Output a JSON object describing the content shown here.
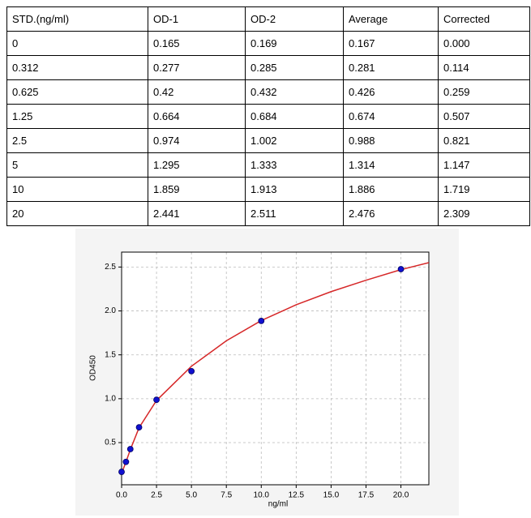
{
  "table": {
    "header": [
      "STD.(ng/ml)",
      "OD-1",
      "OD-2",
      "Average",
      "Corrected"
    ],
    "rows": [
      [
        "0",
        "0.165",
        "0.169",
        "0.167",
        "0.000"
      ],
      [
        "0.312",
        "0.277",
        "0.285",
        "0.281",
        "0.114"
      ],
      [
        "0.625",
        "0.42",
        "0.432",
        "0.426",
        "0.259"
      ],
      [
        "1.25",
        "0.664",
        "0.684",
        "0.674",
        "0.507"
      ],
      [
        "2.5",
        "0.974",
        "1.002",
        "0.988",
        "0.821"
      ],
      [
        "5",
        "1.295",
        "1.333",
        "1.314",
        "1.147"
      ],
      [
        "10",
        "1.859",
        "1.913",
        "1.886",
        "1.719"
      ],
      [
        "20",
        "2.441",
        "2.511",
        "2.476",
        "2.309"
      ]
    ]
  },
  "chart_data": {
    "type": "scatter",
    "xlabel": "ng/ml",
    "ylabel": "OD450",
    "x": [
      0,
      0.312,
      0.625,
      1.25,
      2.5,
      5,
      10,
      20
    ],
    "values": [
      0.167,
      0.281,
      0.426,
      0.674,
      0.988,
      1.314,
      1.886,
      2.476
    ],
    "color": "#1010d0",
    "curve": {
      "x": [
        0,
        0.312,
        0.625,
        1.25,
        2.5,
        5,
        7.5,
        10,
        12.5,
        15,
        17.5,
        20,
        22
      ],
      "values": [
        0.15,
        0.28,
        0.42,
        0.67,
        0.98,
        1.37,
        1.66,
        1.89,
        2.07,
        2.22,
        2.35,
        2.47,
        2.55
      ],
      "color": "#d62728"
    },
    "xlim": [
      0,
      22
    ],
    "ylim": [
      0.02,
      2.67
    ],
    "xticks": [
      {
        "value": 0,
        "label": "0.0"
      },
      2.5,
      {
        "value": 5,
        "label": "5.0"
      },
      7.5,
      {
        "value": 10,
        "label": "10.0"
      },
      12.5,
      {
        "value": 15,
        "label": "15.0"
      },
      17.5,
      {
        "value": 20,
        "label": "20.0"
      }
    ],
    "yticks": [
      0.5,
      {
        "value": 1,
        "label": "1.0"
      },
      1.5,
      {
        "value": 2,
        "label": "2.0"
      },
      2.5
    ],
    "grid": true
  }
}
